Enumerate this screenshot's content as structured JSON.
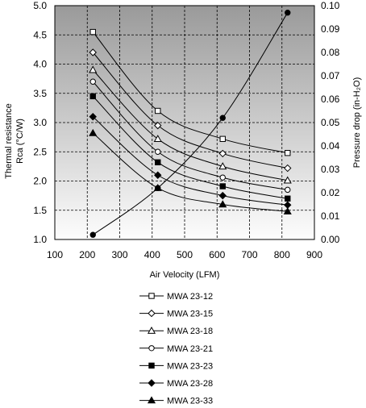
{
  "chart_data": {
    "type": "line",
    "xlabel": "Air Velocity (LFM)",
    "ylabel_left_line1": "Thermal resistance",
    "ylabel_left_line2": "Rca (°C/W)",
    "ylabel_right": "Pressure drop (in-H₂O)",
    "xlim": [
      100,
      900
    ],
    "ylim_left": [
      1.0,
      5.0
    ],
    "ylim_right": [
      0.0,
      0.1
    ],
    "x_ticks": [
      "100",
      "200",
      "300",
      "400",
      "500",
      "600",
      "700",
      "800",
      "900"
    ],
    "y_left_ticks": [
      "1.0",
      "1.5",
      "2.0",
      "2.5",
      "3.0",
      "3.5",
      "4.0",
      "4.5",
      "5.0"
    ],
    "y_right_ticks": [
      "0.00",
      "0.01",
      "0.02",
      "0.03",
      "0.04",
      "0.05",
      "0.06",
      "0.07",
      "0.08",
      "0.09",
      "0.10"
    ],
    "grid": true,
    "legend_position": "bottom",
    "background_gradient": [
      "#9a9a9a",
      "#fdfdfd"
    ],
    "series": [
      {
        "name": "MWA 23-12",
        "marker": "square-open",
        "axis": "left",
        "x": [
          200,
          400,
          600,
          800
        ],
        "y": [
          4.55,
          3.2,
          2.72,
          2.48
        ]
      },
      {
        "name": "MWA 23-15",
        "marker": "diamond-open",
        "axis": "left",
        "x": [
          200,
          400,
          600,
          800
        ],
        "y": [
          4.2,
          2.95,
          2.47,
          2.22
        ]
      },
      {
        "name": "MWA 23-18",
        "marker": "triangle-open",
        "axis": "left",
        "x": [
          200,
          400,
          600,
          800
        ],
        "y": [
          3.9,
          2.72,
          2.25,
          2.01
        ]
      },
      {
        "name": "MWA 23-21",
        "marker": "circle-open",
        "axis": "left",
        "x": [
          200,
          400,
          600,
          800
        ],
        "y": [
          3.7,
          2.5,
          2.06,
          1.85
        ]
      },
      {
        "name": "MWA 23-23",
        "marker": "square-filled",
        "axis": "left",
        "x": [
          200,
          400,
          600,
          800
        ],
        "y": [
          3.45,
          2.32,
          1.91,
          1.7
        ]
      },
      {
        "name": "MWA 23-28",
        "marker": "diamond-filled",
        "axis": "left",
        "x": [
          200,
          400,
          600,
          800
        ],
        "y": [
          3.1,
          2.1,
          1.75,
          1.59
        ]
      },
      {
        "name": "MWA 23-33",
        "marker": "triangle-filled",
        "axis": "left",
        "x": [
          200,
          400,
          600,
          800
        ],
        "y": [
          2.82,
          1.88,
          1.6,
          1.48
        ]
      }
    ],
    "pressure_series": {
      "marker": "circle-filled",
      "axis": "right",
      "x": [
        200,
        400,
        600,
        800
      ],
      "y": [
        0.002,
        0.022,
        0.052,
        0.097
      ]
    }
  }
}
